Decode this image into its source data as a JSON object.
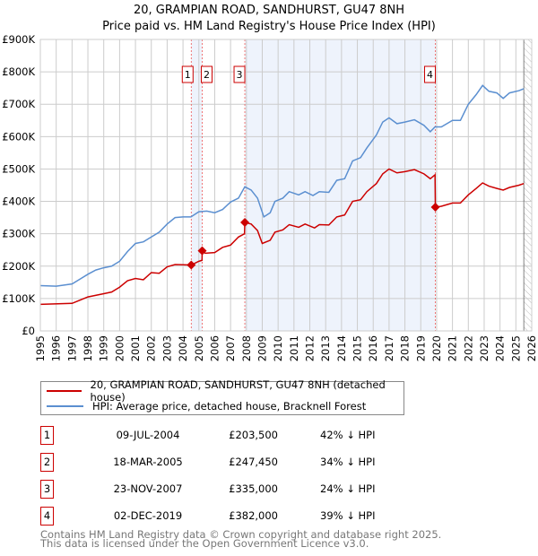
{
  "chart_data": {
    "type": "line",
    "title": "20, GRAMPIAN ROAD, SANDHURST, GU47 8NH",
    "subtitle": "Price paid vs. HM Land Registry's House Price Index (HPI)",
    "xlim": [
      1995,
      2026
    ],
    "ylim": [
      0,
      900000
    ],
    "x_ticks": [
      "1995",
      "1996",
      "1997",
      "1998",
      "1999",
      "2000",
      "2001",
      "2002",
      "2003",
      "2004",
      "2005",
      "2006",
      "2007",
      "2008",
      "2009",
      "2010",
      "2011",
      "2012",
      "2013",
      "2014",
      "2015",
      "2016",
      "2017",
      "2018",
      "2019",
      "2020",
      "2021",
      "2022",
      "2023",
      "2024",
      "2025",
      "2026"
    ],
    "y_ticks": [
      {
        "v": 0,
        "label": "£0"
      },
      {
        "v": 100000,
        "label": "£100K"
      },
      {
        "v": 200000,
        "label": "£200K"
      },
      {
        "v": 300000,
        "label": "£300K"
      },
      {
        "v": 400000,
        "label": "£400K"
      },
      {
        "v": 500000,
        "label": "£500K"
      },
      {
        "v": 600000,
        "label": "£600K"
      },
      {
        "v": 700000,
        "label": "£700K"
      },
      {
        "v": 800000,
        "label": "£800K"
      },
      {
        "v": 900000,
        "label": "£900K"
      }
    ],
    "grid": true,
    "series": [
      {
        "name": "20, GRAMPIAN ROAD, SANDHURST, GU47 8NH (detached house)",
        "color": "#cc0000",
        "x": [
          1995,
          1997,
          1997.5,
          1998,
          1999,
          1999.5,
          2000,
          2000.5,
          2001,
          2001.5,
          2002,
          2002.5,
          2003,
          2003.5,
          2004.52,
          2005,
          2005.2,
          2005.21,
          2005.4,
          2006,
          2006.5,
          2007,
          2007.5,
          2007.88,
          2007.9,
          2008.3,
          2008.7,
          2009.0,
          2009.5,
          2009.8,
          2010.3,
          2010.7,
          2011.3,
          2011.7,
          2012.3,
          2012.6,
          2013.2,
          2013.7,
          2014.2,
          2014.7,
          2015.2,
          2015.6,
          2016.2,
          2016.6,
          2017,
          2017.5,
          2018,
          2018.6,
          2019.2,
          2019.6,
          2019.9,
          2019.92,
          2020.3,
          2021,
          2021.5,
          2022,
          2022.5,
          2022.9,
          2023.3,
          2023.8,
          2024.2,
          2024.6,
          2025.2,
          2025.5
        ],
        "y": [
          82000,
          85000,
          95000,
          105000,
          115000,
          120000,
          135000,
          155000,
          162000,
          158000,
          180000,
          178000,
          198000,
          205000,
          203500,
          215000,
          218000,
          247450,
          240000,
          242000,
          258000,
          265000,
          290000,
          300000,
          335000,
          330000,
          310000,
          270000,
          280000,
          305000,
          312000,
          328000,
          320000,
          330000,
          318000,
          328000,
          327000,
          352000,
          358000,
          400000,
          405000,
          430000,
          455000,
          485000,
          500000,
          488000,
          492000,
          498000,
          485000,
          470000,
          482000,
          382000,
          385000,
          395000,
          395000,
          420000,
          440000,
          457000,
          447000,
          440000,
          435000,
          443000,
          450000,
          455000
        ]
      },
      {
        "name": "HPI: Average price, detached house, Bracknell Forest",
        "color": "#5b8fd0",
        "x": [
          1995,
          1996,
          1997,
          1997.5,
          1998,
          1998.5,
          1999,
          1999.5,
          2000,
          2000.5,
          2001,
          2001.5,
          2002,
          2002.5,
          2003,
          2003.5,
          2004,
          2004.5,
          2005,
          2005.5,
          2006,
          2006.5,
          2007,
          2007.5,
          2007.9,
          2008.3,
          2008.7,
          2009.1,
          2009.5,
          2009.8,
          2010.3,
          2010.7,
          2011.3,
          2011.7,
          2012.2,
          2012.6,
          2013.2,
          2013.7,
          2014.2,
          2014.7,
          2015.2,
          2015.6,
          2016.2,
          2016.6,
          2017,
          2017.5,
          2018,
          2018.6,
          2019.2,
          2019.6,
          2019.9,
          2020.3,
          2021,
          2021.5,
          2022,
          2022.5,
          2022.9,
          2023.3,
          2023.8,
          2024.2,
          2024.6,
          2025.2,
          2025.5
        ],
        "y": [
          140000,
          138000,
          145000,
          160000,
          175000,
          188000,
          195000,
          200000,
          215000,
          245000,
          270000,
          275000,
          290000,
          305000,
          330000,
          350000,
          352000,
          352000,
          368000,
          370000,
          365000,
          375000,
          398000,
          410000,
          445000,
          435000,
          410000,
          352000,
          365000,
          400000,
          410000,
          430000,
          420000,
          430000,
          418000,
          430000,
          428000,
          465000,
          470000,
          525000,
          535000,
          565000,
          605000,
          645000,
          658000,
          640000,
          645000,
          652000,
          635000,
          615000,
          630000,
          630000,
          650000,
          650000,
          700000,
          730000,
          758000,
          740000,
          735000,
          718000,
          735000,
          742000,
          748000
        ]
      }
    ],
    "sales": [
      {
        "n": "1",
        "x": 2004.52,
        "y": 203500
      },
      {
        "n": "2",
        "x": 2005.21,
        "y": 247450
      },
      {
        "n": "3",
        "x": 2007.9,
        "y": 335000
      },
      {
        "n": "4",
        "x": 2019.92,
        "y": 382000
      }
    ],
    "shaded_ranges": [
      [
        2004.52,
        2005.21
      ],
      [
        2007.9,
        2019.92
      ]
    ],
    "forecast_from": 2025.5
  },
  "legend": {
    "property": "20, GRAMPIAN ROAD, SANDHURST, GU47 8NH (detached house)",
    "hpi": "HPI: Average price, detached house, Bracknell Forest"
  },
  "transactions": [
    {
      "n": "1",
      "date": "09-JUL-2004",
      "price": "£203,500",
      "hpi": "42% ↓ HPI"
    },
    {
      "n": "2",
      "date": "18-MAR-2005",
      "price": "£247,450",
      "hpi": "34% ↓ HPI"
    },
    {
      "n": "3",
      "date": "23-NOV-2007",
      "price": "£335,000",
      "hpi": "24% ↓ HPI"
    },
    {
      "n": "4",
      "date": "02-DEC-2019",
      "price": "£382,000",
      "hpi": "39% ↓ HPI"
    }
  ],
  "footer": {
    "line1": "Contains HM Land Registry data © Crown copyright and database right 2025.",
    "line2": "This data is licensed under the Open Government Licence v3.0."
  }
}
